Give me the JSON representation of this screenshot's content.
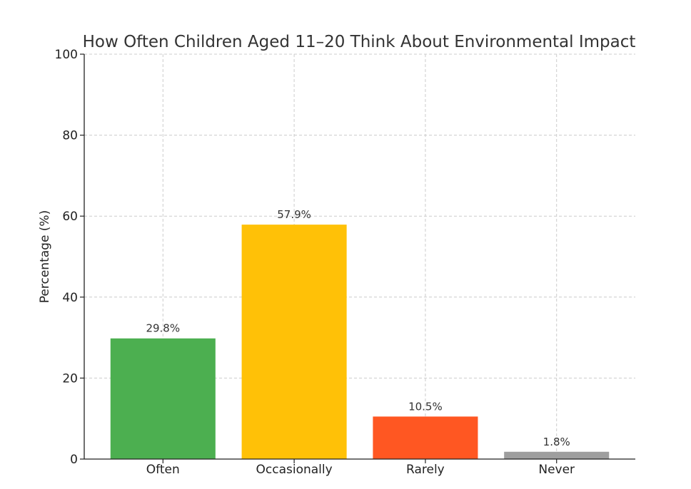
{
  "chart_data": {
    "type": "bar",
    "title": "How Often Children Aged 11–20 Think About Environmental Impact",
    "xlabel": "",
    "ylabel": "Percentage (%)",
    "ylim": [
      0,
      100
    ],
    "yticks": [
      0,
      20,
      40,
      60,
      80,
      100
    ],
    "grid": true,
    "categories": [
      "Often",
      "Occasionally",
      "Rarely",
      "Never"
    ],
    "values": [
      29.8,
      57.9,
      10.5,
      1.8
    ],
    "value_labels": [
      "29.8%",
      "57.9%",
      "10.5%",
      "1.8%"
    ],
    "colors": [
      "#4caf50",
      "#ffc107",
      "#ff5722",
      "#9e9e9e"
    ]
  }
}
